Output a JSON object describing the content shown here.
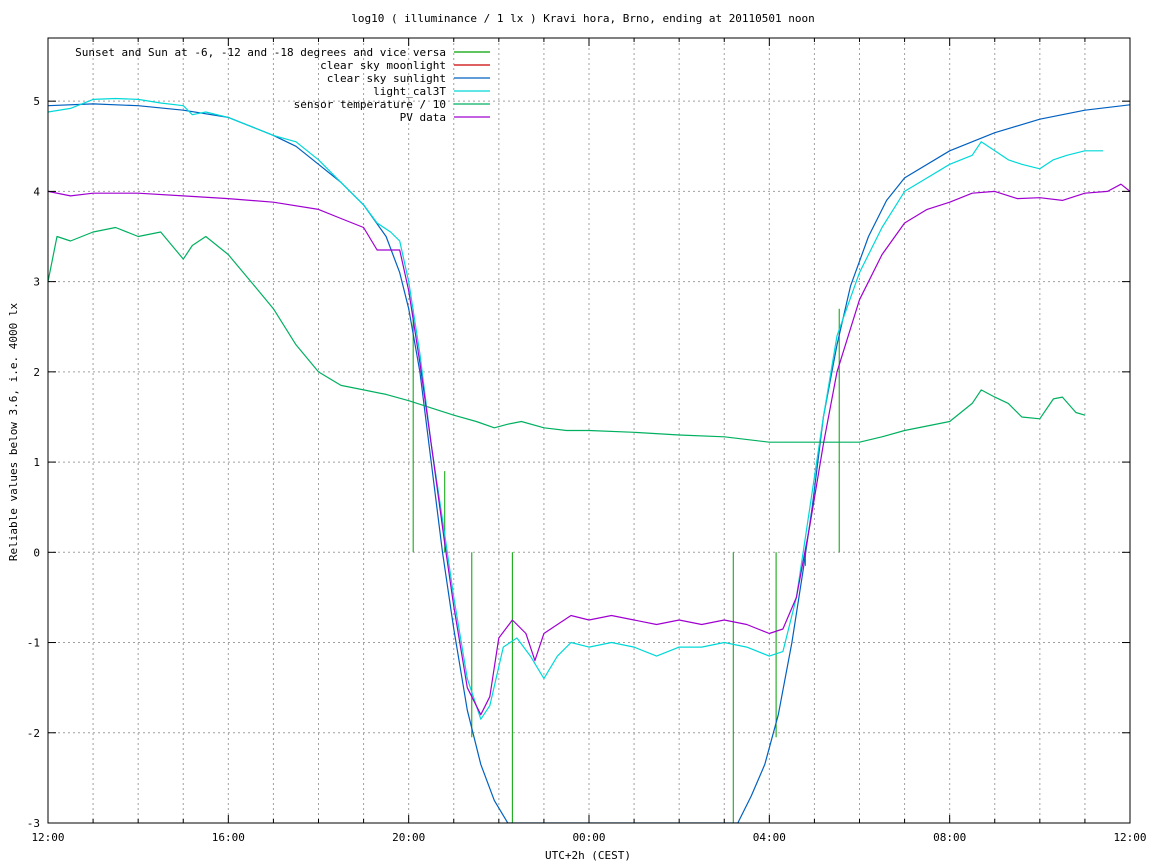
{
  "chart_data": {
    "type": "line",
    "title": "log10 ( illuminance / 1 lx ) Kravi hora, Brno, ending at 20110501 noon",
    "xlabel": "UTC+2h (CEST)",
    "ylabel": "Reliable values below 3.6, i.e. 4000 lx",
    "xlim": [
      12,
      36
    ],
    "ylim": [
      -3,
      5.7
    ],
    "grid": true,
    "legend_position": "top-left",
    "xticks": [
      {
        "v": 12,
        "label": "12:00"
      },
      {
        "v": 16,
        "label": "16:00"
      },
      {
        "v": 20,
        "label": "20:00"
      },
      {
        "v": 24,
        "label": "00:00"
      },
      {
        "v": 28,
        "label": "04:00"
      },
      {
        "v": 32,
        "label": "08:00"
      },
      {
        "v": 36,
        "label": "12:00"
      }
    ],
    "yticks": [
      {
        "v": -3,
        "label": "-3"
      },
      {
        "v": -2,
        "label": "-2"
      },
      {
        "v": -1,
        "label": "-1"
      },
      {
        "v": 0,
        "label": "0"
      },
      {
        "v": 1,
        "label": "1"
      },
      {
        "v": 2,
        "label": "2"
      },
      {
        "v": 3,
        "label": "3"
      },
      {
        "v": 4,
        "label": "4"
      },
      {
        "v": 5,
        "label": "5"
      }
    ],
    "series": [
      {
        "name": "Sunset and Sun at -6, -12 and -18 degrees and vice versa",
        "color": "#00a000",
        "style": "impulses",
        "points": [
          [
            20.1,
            2.7
          ],
          [
            20.8,
            0.9
          ],
          [
            21.4,
            -2.05
          ],
          [
            22.3,
            -3.0
          ],
          [
            27.2,
            -3.0
          ],
          [
            28.15,
            -2.05
          ],
          [
            28.8,
            -0.15
          ],
          [
            29.55,
            2.7
          ]
        ]
      },
      {
        "name": "clear sky moonlight",
        "color": "#cc0000",
        "points": []
      },
      {
        "name": "clear sky sunlight",
        "color": "#0060c0",
        "points": [
          [
            12.0,
            4.95
          ],
          [
            13.0,
            4.97
          ],
          [
            14.0,
            4.95
          ],
          [
            15.0,
            4.9
          ],
          [
            16.0,
            4.82
          ],
          [
            17.0,
            4.62
          ],
          [
            17.5,
            4.5
          ],
          [
            18.0,
            4.3
          ],
          [
            18.5,
            4.1
          ],
          [
            19.0,
            3.85
          ],
          [
            19.5,
            3.5
          ],
          [
            19.8,
            3.1
          ],
          [
            20.0,
            2.7
          ],
          [
            20.25,
            2.0
          ],
          [
            20.5,
            1.0
          ],
          [
            20.75,
            0.0
          ],
          [
            21.0,
            -0.85
          ],
          [
            21.3,
            -1.75
          ],
          [
            21.6,
            -2.35
          ],
          [
            21.9,
            -2.75
          ],
          [
            22.2,
            -3.0
          ],
          [
            27.3,
            -3.0
          ],
          [
            27.6,
            -2.7
          ],
          [
            27.9,
            -2.35
          ],
          [
            28.2,
            -1.8
          ],
          [
            28.5,
            -1.0
          ],
          [
            28.75,
            -0.2
          ],
          [
            28.95,
            0.5
          ],
          [
            29.2,
            1.5
          ],
          [
            29.5,
            2.3
          ],
          [
            29.8,
            2.95
          ],
          [
            30.2,
            3.5
          ],
          [
            30.6,
            3.9
          ],
          [
            31.0,
            4.15
          ],
          [
            32.0,
            4.45
          ],
          [
            33.0,
            4.65
          ],
          [
            34.0,
            4.8
          ],
          [
            35.0,
            4.9
          ],
          [
            36.0,
            4.96
          ]
        ]
      },
      {
        "name": "light_cal3T",
        "color": "#00d8d8",
        "points": [
          [
            12.0,
            4.88
          ],
          [
            12.5,
            4.92
          ],
          [
            13.0,
            5.02
          ],
          [
            13.5,
            5.03
          ],
          [
            14.0,
            5.02
          ],
          [
            14.5,
            4.98
          ],
          [
            15.0,
            4.95
          ],
          [
            15.2,
            4.85
          ],
          [
            15.5,
            4.88
          ],
          [
            16.0,
            4.82
          ],
          [
            16.5,
            4.72
          ],
          [
            17.0,
            4.62
          ],
          [
            17.5,
            4.55
          ],
          [
            18.0,
            4.35
          ],
          [
            18.5,
            4.1
          ],
          [
            19.0,
            3.85
          ],
          [
            19.3,
            3.65
          ],
          [
            19.6,
            3.55
          ],
          [
            19.8,
            3.45
          ],
          [
            20.0,
            3.0
          ],
          [
            20.25,
            2.2
          ],
          [
            20.5,
            1.2
          ],
          [
            20.8,
            0.2
          ],
          [
            21.0,
            -0.5
          ],
          [
            21.3,
            -1.4
          ],
          [
            21.6,
            -1.85
          ],
          [
            21.8,
            -1.7
          ],
          [
            22.1,
            -1.05
          ],
          [
            22.4,
            -0.95
          ],
          [
            22.7,
            -1.15
          ],
          [
            23.0,
            -1.4
          ],
          [
            23.3,
            -1.15
          ],
          [
            23.6,
            -1.0
          ],
          [
            24.0,
            -1.05
          ],
          [
            24.5,
            -1.0
          ],
          [
            25.0,
            -1.05
          ],
          [
            25.5,
            -1.15
          ],
          [
            26.0,
            -1.05
          ],
          [
            26.5,
            -1.05
          ],
          [
            27.0,
            -1.0
          ],
          [
            27.5,
            -1.05
          ],
          [
            28.0,
            -1.15
          ],
          [
            28.3,
            -1.1
          ],
          [
            28.6,
            -0.5
          ],
          [
            28.9,
            0.5
          ],
          [
            29.2,
            1.5
          ],
          [
            29.5,
            2.4
          ],
          [
            30.0,
            3.1
          ],
          [
            30.5,
            3.6
          ],
          [
            31.0,
            4.0
          ],
          [
            31.5,
            4.15
          ],
          [
            32.0,
            4.3
          ],
          [
            32.5,
            4.4
          ],
          [
            32.7,
            4.55
          ],
          [
            33.0,
            4.45
          ],
          [
            33.3,
            4.35
          ],
          [
            33.6,
            4.3
          ],
          [
            34.0,
            4.25
          ],
          [
            34.3,
            4.35
          ],
          [
            34.6,
            4.4
          ],
          [
            35.0,
            4.45
          ],
          [
            35.4,
            4.45
          ]
        ]
      },
      {
        "name": "sensor temperature / 10",
        "color": "#00b060",
        "points": [
          [
            12.0,
            3.0
          ],
          [
            12.2,
            3.5
          ],
          [
            12.5,
            3.45
          ],
          [
            13.0,
            3.55
          ],
          [
            13.5,
            3.6
          ],
          [
            14.0,
            3.5
          ],
          [
            14.5,
            3.55
          ],
          [
            15.0,
            3.25
          ],
          [
            15.2,
            3.4
          ],
          [
            15.5,
            3.5
          ],
          [
            16.0,
            3.3
          ],
          [
            16.5,
            3.0
          ],
          [
            17.0,
            2.7
          ],
          [
            17.5,
            2.3
          ],
          [
            18.0,
            2.0
          ],
          [
            18.5,
            1.85
          ],
          [
            19.0,
            1.8
          ],
          [
            19.5,
            1.75
          ],
          [
            20.0,
            1.68
          ],
          [
            20.5,
            1.6
          ],
          [
            21.0,
            1.52
          ],
          [
            21.5,
            1.45
          ],
          [
            21.9,
            1.38
          ],
          [
            22.2,
            1.42
          ],
          [
            22.5,
            1.45
          ],
          [
            23.0,
            1.38
          ],
          [
            23.5,
            1.35
          ],
          [
            24.0,
            1.35
          ],
          [
            25.0,
            1.33
          ],
          [
            26.0,
            1.3
          ],
          [
            27.0,
            1.28
          ],
          [
            28.0,
            1.22
          ],
          [
            29.0,
            1.22
          ],
          [
            30.0,
            1.22
          ],
          [
            30.5,
            1.28
          ],
          [
            31.0,
            1.35
          ],
          [
            31.5,
            1.4
          ],
          [
            32.0,
            1.45
          ],
          [
            32.5,
            1.65
          ],
          [
            32.7,
            1.8
          ],
          [
            33.0,
            1.72
          ],
          [
            33.3,
            1.65
          ],
          [
            33.6,
            1.5
          ],
          [
            34.0,
            1.48
          ],
          [
            34.3,
            1.7
          ],
          [
            34.5,
            1.72
          ],
          [
            34.8,
            1.55
          ],
          [
            35.0,
            1.52
          ]
        ]
      },
      {
        "name": "PV data",
        "color": "#a000d0",
        "points": [
          [
            12.0,
            4.0
          ],
          [
            12.5,
            3.95
          ],
          [
            13.0,
            3.98
          ],
          [
            14.0,
            3.98
          ],
          [
            15.0,
            3.95
          ],
          [
            16.0,
            3.92
          ],
          [
            17.0,
            3.88
          ],
          [
            18.0,
            3.8
          ],
          [
            18.5,
            3.7
          ],
          [
            19.0,
            3.6
          ],
          [
            19.3,
            3.35
          ],
          [
            19.6,
            3.35
          ],
          [
            19.8,
            3.35
          ],
          [
            20.0,
            2.9
          ],
          [
            20.25,
            2.1
          ],
          [
            20.5,
            1.2
          ],
          [
            20.8,
            0.1
          ],
          [
            21.0,
            -0.6
          ],
          [
            21.3,
            -1.5
          ],
          [
            21.6,
            -1.8
          ],
          [
            21.8,
            -1.6
          ],
          [
            22.0,
            -0.95
          ],
          [
            22.3,
            -0.75
          ],
          [
            22.6,
            -0.9
          ],
          [
            22.8,
            -1.2
          ],
          [
            23.0,
            -0.9
          ],
          [
            23.3,
            -0.8
          ],
          [
            23.6,
            -0.7
          ],
          [
            24.0,
            -0.75
          ],
          [
            24.5,
            -0.7
          ],
          [
            25.0,
            -0.75
          ],
          [
            25.5,
            -0.8
          ],
          [
            26.0,
            -0.75
          ],
          [
            26.5,
            -0.8
          ],
          [
            27.0,
            -0.75
          ],
          [
            27.5,
            -0.8
          ],
          [
            28.0,
            -0.9
          ],
          [
            28.3,
            -0.85
          ],
          [
            28.6,
            -0.5
          ],
          [
            28.9,
            0.3
          ],
          [
            29.2,
            1.2
          ],
          [
            29.5,
            2.0
          ],
          [
            30.0,
            2.8
          ],
          [
            30.5,
            3.3
          ],
          [
            31.0,
            3.65
          ],
          [
            31.5,
            3.8
          ],
          [
            32.0,
            3.88
          ],
          [
            32.5,
            3.98
          ],
          [
            33.0,
            4.0
          ],
          [
            33.5,
            3.92
          ],
          [
            34.0,
            3.93
          ],
          [
            34.5,
            3.9
          ],
          [
            35.0,
            3.98
          ],
          [
            35.5,
            4.0
          ],
          [
            35.8,
            4.08
          ],
          [
            36.0,
            4.0
          ]
        ]
      }
    ]
  }
}
